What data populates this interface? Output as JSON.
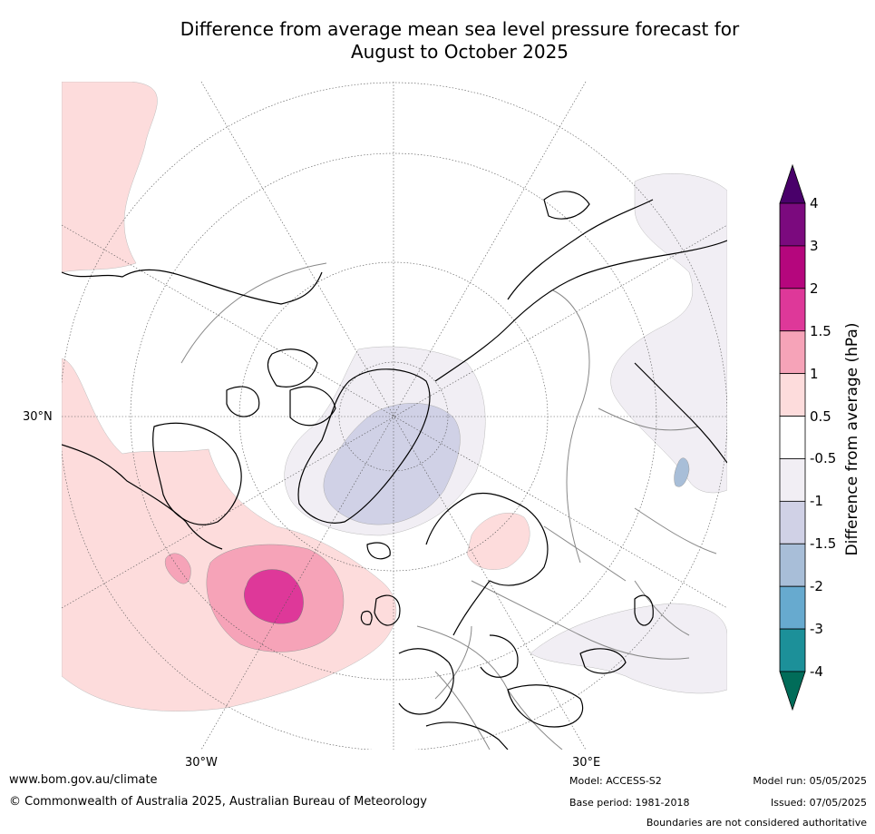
{
  "title": {
    "line1": "Difference from average mean sea level pressure forecast for",
    "line2": "August to October 2025"
  },
  "map": {
    "projection": "north-polar-stereographic",
    "lat_label": "30°N",
    "lon_labels": {
      "west": "30°W",
      "east": "30°E"
    },
    "features": [
      "coastlines",
      "country-boundaries",
      "graticule"
    ]
  },
  "colorbar": {
    "label": "Difference from average (hPa)",
    "ticks": [
      "4",
      "3",
      "2",
      "1.5",
      "1",
      "0.5",
      "-0.5",
      "-1",
      "-1.5",
      "-2",
      "-3",
      "-4"
    ],
    "bands": [
      {
        "range": [
          3,
          4
        ],
        "color": "#7b0a7e"
      },
      {
        "range": [
          2,
          3
        ],
        "color": "#b5067d"
      },
      {
        "range": [
          1.5,
          2
        ],
        "color": "#de3899"
      },
      {
        "range": [
          1,
          1.5
        ],
        "color": "#f6a3b8"
      },
      {
        "range": [
          0.5,
          1
        ],
        "color": "#fddcdc"
      },
      {
        "range": [
          -0.5,
          0.5
        ],
        "color": "#ffffff"
      },
      {
        "range": [
          -1,
          -0.5
        ],
        "color": "#f1eef4"
      },
      {
        "range": [
          -1.5,
          -1
        ],
        "color": "#d0d1e6"
      },
      {
        "range": [
          -2,
          -1.5
        ],
        "color": "#a8bed8"
      },
      {
        "range": [
          -3,
          -2
        ],
        "color": "#67aacf"
      },
      {
        "range": [
          -4,
          -3
        ],
        "color": "#1c9099"
      }
    ],
    "over_color": "#49006a",
    "under_color": "#016c59"
  },
  "footer": {
    "website": "www.bom.gov.au/climate",
    "copyright": "© Commonwealth of Australia 2025, Australian Bureau of Meteorology",
    "model": "Model: ACCESS-S2",
    "base_period": "Base period: 1981-2018",
    "model_run": "Model run: 05/05/2025",
    "issued": "Issued: 07/05/2025",
    "disclaimer": "Boundaries are not considered authoritative"
  }
}
